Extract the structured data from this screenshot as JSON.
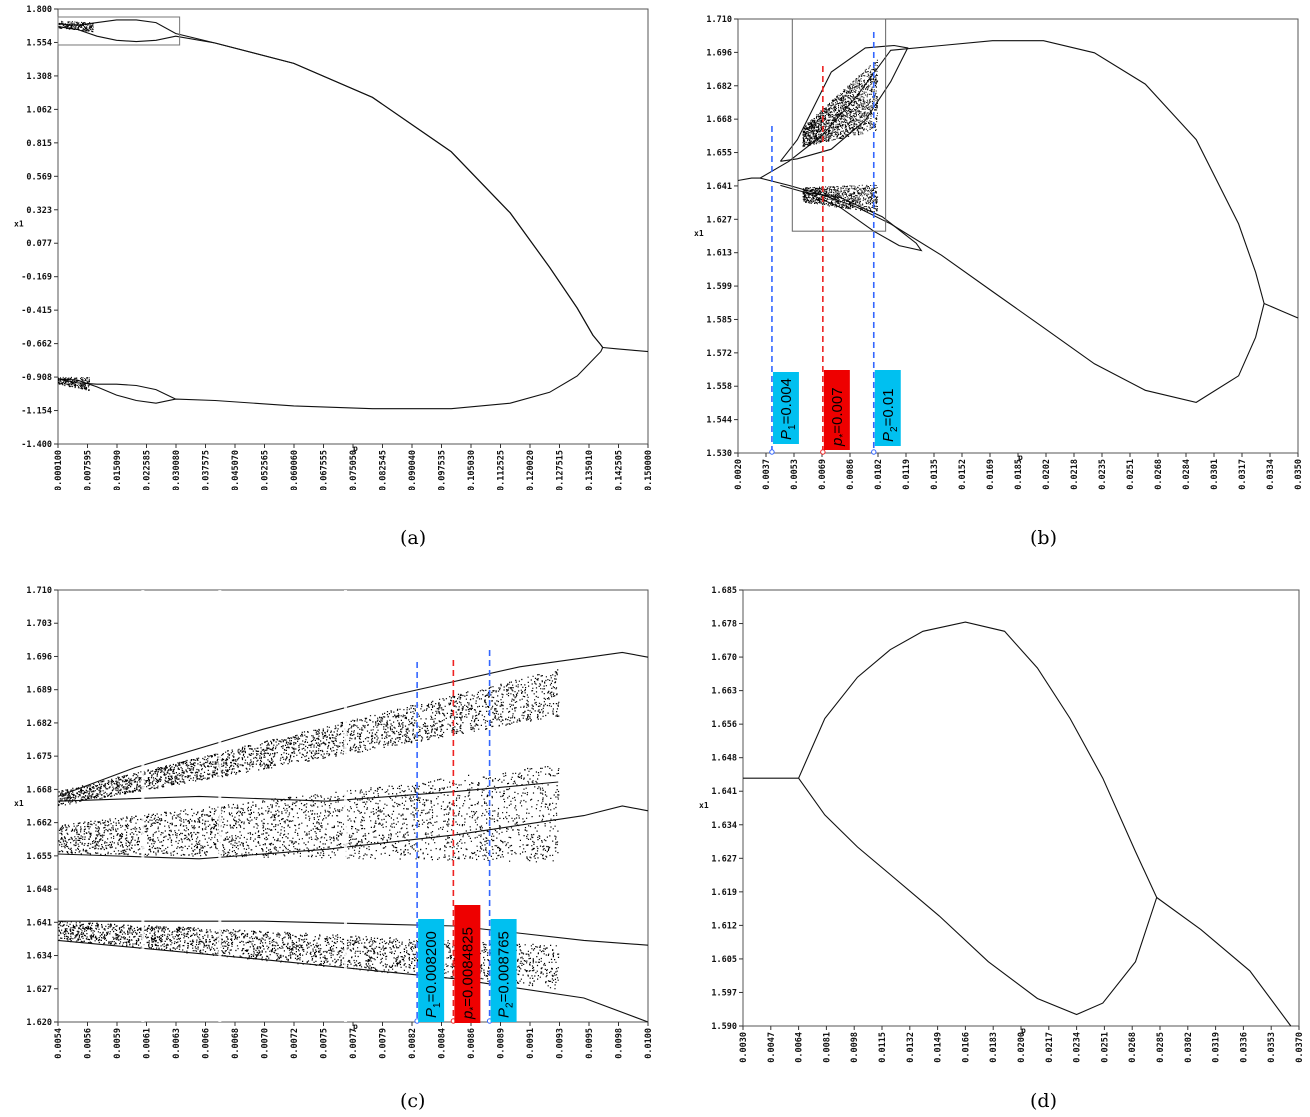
{
  "panels": [
    {
      "id": "a",
      "caption": "(a)",
      "chart_data": {
        "type": "scatter",
        "title": "",
        "xlabel": "p",
        "ylabel": "x1",
        "xlim": [
          0.0001,
          0.15
        ],
        "ylim": [
          -1.4,
          1.8
        ],
        "xticks": [
          "0.000100",
          "0.007595",
          "0.015090",
          "0.022585",
          "0.030080",
          "0.037575",
          "0.045070",
          "0.052565",
          "0.060060",
          "0.067555",
          "0.075050",
          "0.082545",
          "0.090040",
          "0.097535",
          "0.105030",
          "0.112525",
          "0.120020",
          "0.127515",
          "0.135010",
          "0.142505",
          "0.150000"
        ],
        "yticks": [
          "1.800",
          "1.554",
          "1.308",
          "1.062",
          "0.815",
          "0.569",
          "0.323",
          "0.077",
          "-0.169",
          "-0.415",
          "-0.662",
          "-0.908",
          "-1.154",
          "-1.400"
        ],
        "series": [
          {
            "x": [
              0.0001,
              0.005,
              0.01,
              0.015,
              0.02,
              0.025,
              0.03,
              0.04,
              0.06,
              0.08,
              0.1,
              0.115,
              0.125,
              0.132,
              0.136,
              0.138,
              0.1385
            ],
            "y": [
              1.69,
              1.68,
              1.7,
              1.72,
              1.72,
              1.7,
              1.62,
              1.55,
              1.4,
              1.15,
              0.75,
              0.3,
              -0.1,
              -0.4,
              -0.6,
              -0.67,
              -0.69
            ]
          },
          {
            "x": [
              0.0001,
              0.005,
              0.01,
              0.015,
              0.02,
              0.025,
              0.03,
              0.04,
              0.06,
              0.08,
              0.1,
              0.115,
              0.125,
              0.132,
              0.136,
              0.138,
              0.1385
            ],
            "y": [
              1.67,
              1.65,
              1.6,
              1.57,
              1.56,
              1.57,
              1.6,
              1.55,
              1.4,
              1.15,
              0.75,
              0.3,
              -0.1,
              -0.4,
              -0.6,
              -0.67,
              -0.69
            ]
          },
          {
            "x": [
              0.0001,
              0.005,
              0.01,
              0.015,
              0.02,
              0.025,
              0.03,
              0.04,
              0.06,
              0.08,
              0.1,
              0.115,
              0.125,
              0.132,
              0.136,
              0.138,
              0.1385
            ],
            "y": [
              -0.92,
              -0.93,
              -0.98,
              -1.04,
              -1.08,
              -1.1,
              -1.07,
              -1.08,
              -1.12,
              -1.14,
              -1.14,
              -1.1,
              -1.02,
              -0.9,
              -0.78,
              -0.72,
              -0.69
            ]
          },
          {
            "x": [
              0.0001,
              0.005,
              0.01,
              0.015,
              0.02,
              0.025,
              0.03
            ],
            "y": [
              -0.92,
              -0.95,
              -0.96,
              -0.96,
              -0.97,
              -1.0,
              -1.07
            ]
          },
          {
            "x": [
              0.1385,
              0.142,
              0.146,
              0.15
            ],
            "y": [
              -0.69,
              -0.7,
              -0.71,
              -0.72
            ]
          }
        ],
        "annotations": [
          {
            "type": "rectangle",
            "x": [
              0.0001,
              0.031
            ],
            "y": [
              1.55,
              1.8
            ]
          }
        ]
      }
    },
    {
      "id": "b",
      "caption": "(b)",
      "chart_data": {
        "type": "scatter",
        "title": "",
        "xlabel": "p",
        "ylabel": "x1",
        "xlim": [
          0.002,
          0.035
        ],
        "ylim": [
          1.53,
          1.71
        ],
        "xticks": [
          "0.0020",
          "0.0037",
          "0.0053",
          "0.0069",
          "0.0086",
          "0.0102",
          "0.0119",
          "0.0135",
          "0.0152",
          "0.0169",
          "0.0185",
          "0.0202",
          "0.0218",
          "0.0235",
          "0.0251",
          "0.0268",
          "0.0284",
          "0.0301",
          "0.0317",
          "0.0334",
          "0.0350"
        ],
        "yticks": [
          "1.710",
          "1.696",
          "1.682",
          "1.668",
          "1.655",
          "1.641",
          "1.627",
          "1.613",
          "1.599",
          "1.585",
          "1.572",
          "1.558",
          "1.544",
          "1.530"
        ],
        "series": [
          {
            "x": [
              0.002,
              0.0028,
              0.0033
            ],
            "y": [
              1.643,
              1.644,
              1.644
            ]
          },
          {
            "x": [
              0.0033,
              0.005,
              0.007,
              0.009,
              0.011,
              0.014,
              0.017,
              0.02,
              0.023,
              0.026,
              0.029,
              0.0315,
              0.0325,
              0.033
            ],
            "y": [
              1.644,
              1.651,
              1.662,
              1.678,
              1.697,
              1.699,
              1.701,
              1.701,
              1.696,
              1.683,
              1.66,
              1.625,
              1.605,
              1.592
            ]
          },
          {
            "x": [
              0.0033,
              0.005,
              0.007,
              0.009,
              0.011,
              0.014,
              0.017,
              0.02,
              0.023,
              0.026,
              0.029,
              0.0315,
              0.0325,
              0.033
            ],
            "y": [
              1.644,
              1.641,
              1.637,
              1.632,
              1.625,
              1.612,
              1.597,
              1.582,
              1.567,
              1.556,
              1.551,
              1.562,
              1.578,
              1.592
            ]
          },
          {
            "x": [
              0.033,
              0.034,
              0.035
            ],
            "y": [
              1.592,
              1.589,
              1.586
            ]
          }
        ],
        "annotations": [
          {
            "label_sym": "P",
            "label_sub": "1",
            "label_val": "=0.004",
            "x": 0.004,
            "color": "#00c0f0"
          },
          {
            "label_sym": "p",
            "label_sub": "*",
            "label_val": "=0.007",
            "x": 0.007,
            "color": "#ee0000"
          },
          {
            "label_sym": "P",
            "label_sub": "2",
            "label_val": "=0.01",
            "x": 0.01,
            "color": "#00c0f0"
          }
        ]
      }
    },
    {
      "id": "c",
      "caption": "(c)",
      "chart_data": {
        "type": "scatter",
        "title": "",
        "xlabel": "p",
        "ylabel": "x1",
        "xlim": [
          0.0054,
          0.01
        ],
        "ylim": [
          1.62,
          1.71
        ],
        "xticks": [
          "0.0054",
          "0.0056",
          "0.0059",
          "0.0061",
          "0.0063",
          "0.0066",
          "0.0068",
          "0.0070",
          "0.0072",
          "0.0075",
          "0.0077",
          "0.0079",
          "0.0082",
          "0.0084",
          "0.0086",
          "0.0089",
          "0.0091",
          "0.0093",
          "0.0095",
          "0.0098",
          "0.0100"
        ],
        "yticks": [
          "1.710",
          "1.703",
          "1.696",
          "1.689",
          "1.682",
          "1.675",
          "1.668",
          "1.662",
          "1.655",
          "1.648",
          "1.641",
          "1.634",
          "1.627",
          "1.620"
        ],
        "annotations": [
          {
            "label_sym": "P",
            "label_sub": "1",
            "label_val": "=0.008200",
            "x": 0.0082,
            "color": "#00c0f0"
          },
          {
            "label_sym": "p",
            "label_sub": "*",
            "label_val": "=0.0084825",
            "x": 0.0084825,
            "color": "#ee0000"
          },
          {
            "label_sym": "P",
            "label_sub": "2",
            "label_val": "=0.008765",
            "x": 0.008765,
            "color": "#00c0f0"
          }
        ]
      }
    },
    {
      "id": "d",
      "caption": "(d)",
      "chart_data": {
        "type": "scatter",
        "title": "",
        "xlabel": "p",
        "ylabel": "x1",
        "xlim": [
          0.003,
          0.037
        ],
        "ylim": [
          1.59,
          1.685
        ],
        "xticks": [
          "0.0030",
          "0.0047",
          "0.0064",
          "0.0081",
          "0.0098",
          "0.0115",
          "0.0132",
          "0.0149",
          "0.0166",
          "0.0183",
          "0.0200",
          "0.0217",
          "0.0234",
          "0.0251",
          "0.0268",
          "0.0285",
          "0.0302",
          "0.0319",
          "0.0336",
          "0.0353",
          "0.0370"
        ],
        "yticks": [
          "1.685",
          "1.678",
          "1.670",
          "1.663",
          "1.656",
          "1.648",
          "1.641",
          "1.634",
          "1.627",
          "1.619",
          "1.612",
          "1.605",
          "1.597",
          "1.590"
        ],
        "series": [
          {
            "x": [
              0.003,
              0.005,
              0.0064
            ],
            "y": [
              1.644,
              1.644,
              1.644
            ]
          },
          {
            "x": [
              0.0064,
              0.008,
              0.01,
              0.012,
              0.014,
              0.0166,
              0.019,
              0.021,
              0.023,
              0.025,
              0.027,
              0.0283
            ],
            "y": [
              1.644,
              1.657,
              1.666,
              1.672,
              1.676,
              1.678,
              1.676,
              1.668,
              1.657,
              1.644,
              1.628,
              1.618
            ]
          },
          {
            "x": [
              0.0064,
              0.008,
              0.01,
              0.012,
              0.015,
              0.018,
              0.021,
              0.0234,
              0.025,
              0.027,
              0.0283
            ],
            "y": [
              1.644,
              1.636,
              1.629,
              1.623,
              1.614,
              1.604,
              1.596,
              1.5925,
              1.595,
              1.604,
              1.618
            ]
          },
          {
            "x": [
              0.0283,
              0.031,
              0.034,
              0.0365
            ],
            "y": [
              1.618,
              1.611,
              1.602,
              1.59
            ]
          }
        ]
      }
    }
  ]
}
